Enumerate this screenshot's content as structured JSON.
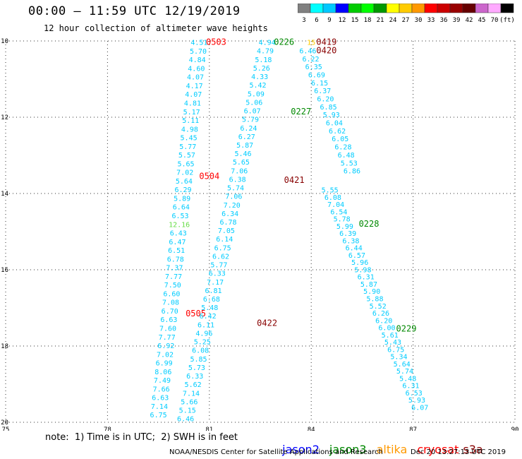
{
  "header": {
    "title": "00:00 – 11:59 UTC 12/19/2019",
    "subtitle": "12 hour collection of altimeter wave heights"
  },
  "colorbar": {
    "labels": [
      "3",
      "6",
      "9",
      "12",
      "15",
      "18",
      "21",
      "24",
      "27",
      "30",
      "33",
      "36",
      "39",
      "42",
      "45",
      "70",
      "(ft)"
    ],
    "colors": [
      "#808080",
      "#00ffff",
      "#00c8ff",
      "#0000ff",
      "#00cc00",
      "#00ff00",
      "#009900",
      "#ffff00",
      "#ffcc00",
      "#ff9900",
      "#ff0000",
      "#cc0000",
      "#990000",
      "#660000",
      "#cc66cc",
      "#ffaaff",
      "#000000"
    ]
  },
  "note": "note:  1) Time is in UTC;  2) SWH is in feet",
  "satellites": [
    {
      "name": "jason2",
      "color": "#0000ff"
    },
    {
      "name": "jason3",
      "color": "#008800"
    },
    {
      "name": "altika",
      "color": "#ff9900"
    },
    {
      "name": "cryosat",
      "color": "#ff0000"
    },
    {
      "name": "s3a",
      "color": "#880000"
    }
  ],
  "footer": {
    "left": "NOAA/NESDIS Center for Satellite Applications and Research",
    "right": "Dec 20 13:27:13 UTC 2019"
  },
  "chart_data": {
    "type": "scatter",
    "xlim": [
      75,
      90
    ],
    "ylim": [
      -20,
      -10
    ],
    "x_ticks": [
      "75",
      "78",
      "81",
      "84",
      "87",
      "90"
    ],
    "y_ticks": [
      "-10",
      "-12",
      "-14",
      "-16",
      "-18",
      "-20"
    ],
    "grid": true,
    "tracks": [
      {
        "label": "0503",
        "label_color": "#ff0000",
        "label_pos": [
          81.2,
          -10.03
        ],
        "x_start": 80.7,
        "y_start": -10.03,
        "x_end": 79.5,
        "y_end": -19.8,
        "color": "#00ccff",
        "values": [
          "4.51",
          "5.70",
          "4.84",
          "4.60",
          "4.07",
          "4.17",
          "4.07",
          "4.81",
          "5.17",
          "5.11",
          "4.98",
          "5.45",
          "5.77",
          "5.57",
          "5.65",
          "7.02",
          "5.64",
          "6.29",
          "5.89",
          "6.64",
          "6.53",
          "12.16",
          "6.43",
          "6.47",
          "6.51",
          "6.78",
          "7.37",
          "7.77",
          "7.50",
          "6.60",
          "7.08",
          "6.70",
          "6.63",
          "7.60",
          "7.77",
          "6.92",
          "7.02",
          "6.99",
          "8.06",
          "7.49",
          "7.66",
          "6.63",
          "7.14",
          "6.75"
        ]
      },
      {
        "label": "0504",
        "label_color": "#ff0000",
        "label_pos": [
          81.0,
          -13.55
        ],
        "values": []
      },
      {
        "label": "0505",
        "label_color": "#ff0000",
        "label_pos": [
          80.6,
          -17.15
        ],
        "values": []
      },
      {
        "label": "0226",
        "label_color": "#008800",
        "label_pos": [
          83.2,
          -10.03
        ],
        "x_start": 82.7,
        "y_start": -10.03,
        "x_end": 80.3,
        "y_end": -19.9,
        "color": "#00ccff",
        "values": [
          "4.94",
          "4.79",
          "5.18",
          "5.26",
          "4.33",
          "5.42",
          "5.09",
          "5.06",
          "6.07",
          "5.79",
          "6.24",
          "6.27",
          "5.87",
          "5.46",
          "5.65",
          "7.06",
          "6.38",
          "5.74",
          "7.06",
          "7.20",
          "6.34",
          "6.78",
          "7.05",
          "6.14",
          "6.75",
          "6.62",
          "5.77",
          "6.33",
          "7.17",
          "6.81",
          "6.68",
          "5.48",
          "6.42",
          "6.11",
          "4.96",
          "5.25",
          "6.08",
          "5.85",
          "5.73",
          "6.33",
          "5.62",
          "7.14",
          "5.66",
          "5.15",
          "6.46"
        ]
      },
      {
        "label": "0227",
        "label_color": "#008800",
        "label_pos": [
          83.7,
          -11.85
        ],
        "values": []
      },
      {
        "label": "0419",
        "label_color": "#880000",
        "label_pos": [
          84.45,
          -10.03
        ],
        "x_start": 83.9,
        "y_start": -10.25,
        "x_end": 85.2,
        "y_end": -13.4,
        "color": "#00ccff",
        "values": [
          "6.46",
          "6.22",
          "6.35",
          "6.69",
          "6.15",
          "6.37",
          "6.20",
          "6.85",
          "5.93",
          "6.04",
          "6.62",
          "6.05",
          "6.28",
          "6.48",
          "5.53",
          "6.86"
        ]
      },
      {
        "label": "0420",
        "label_color": "#880000",
        "label_pos": [
          84.45,
          -10.25
        ],
        "values": []
      },
      {
        "label": "0421",
        "label_color": "#880000",
        "label_pos": [
          83.5,
          -13.65
        ],
        "values": []
      },
      {
        "label": "0422",
        "label_color": "#880000",
        "label_pos": [
          82.7,
          -17.4
        ],
        "values": []
      },
      {
        "label": "0228",
        "label_color": "#008800",
        "label_pos": [
          85.7,
          -14.8
        ],
        "x_start": 84.55,
        "y_start": -13.9,
        "x_end": 87.2,
        "y_end": -19.6,
        "color": "#00ccff",
        "values": [
          "5.55",
          "6.08",
          "7.04",
          "6.54",
          "5.78",
          "5.99",
          "6.39",
          "6.38",
          "6.44",
          "6.57",
          "5.96",
          "5.98",
          "6.31",
          "5.87",
          "5.90",
          "5.88",
          "5.52",
          "6.26",
          "6.20",
          "6.00",
          "5.61",
          "5.43",
          "6.75",
          "5.34",
          "5.64",
          "5.74",
          "5.48",
          "6.31",
          "6.53",
          "5.93",
          "6.07"
        ]
      },
      {
        "label": "0229",
        "label_color": "#008800",
        "label_pos": [
          86.8,
          -17.55
        ],
        "values": []
      }
    ],
    "highlighted_value": {
      "value": "12.16",
      "color": "#66dd44"
    },
    "other_labels": [
      {
        "text": "15",
        "color": "#ffcc00",
        "pos": [
          84.0,
          -10.03
        ]
      }
    ]
  }
}
